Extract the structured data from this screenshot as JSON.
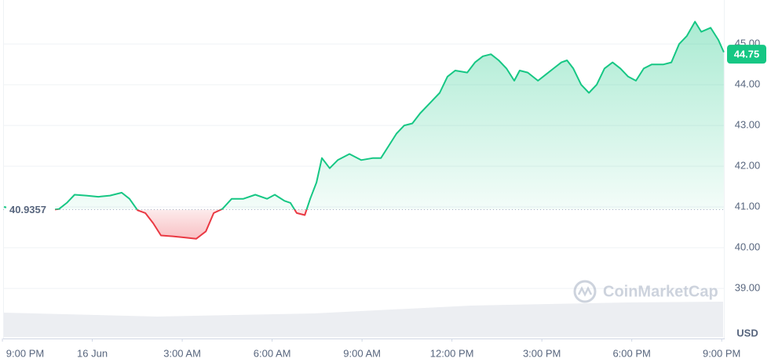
{
  "chart_data": {
    "type": "line",
    "x": [
      0.05,
      1.1,
      1.89,
      2.15,
      2.41,
      2.8,
      3.2,
      3.59,
      3.98,
      4.24,
      4.51,
      4.77,
      5.03,
      5.29,
      5.69,
      6.08,
      6.47,
      6.79,
      7.05,
      7.34,
      7.65,
      8.04,
      8.44,
      8.83,
      9.09,
      9.41,
      9.61,
      9.82,
      10.09,
      10.27,
      10.48,
      10.66,
      10.92,
      11.19,
      11.58,
      11.97,
      12.37,
      12.63,
      12.89,
      13.15,
      13.41,
      13.68,
      13.94,
      14.33,
      14.59,
      14.85,
      15.11,
      15.51,
      15.77,
      16.03,
      16.3,
      16.56,
      16.82,
      17.08,
      17.26,
      17.53,
      17.87,
      18.13,
      18.39,
      18.65,
      18.84,
      19.05,
      19.31,
      19.57,
      19.83,
      20.09,
      20.36,
      20.62,
      20.88,
      21.14,
      21.4,
      21.67,
      22.06,
      22.32,
      22.58,
      22.84,
      23.11,
      23.32,
      23.63,
      23.89,
      24.07
    ],
    "values": [
      41.0,
      40.88,
      40.95,
      41.1,
      41.3,
      41.28,
      41.25,
      41.28,
      41.35,
      41.2,
      40.92,
      40.85,
      40.6,
      40.3,
      40.28,
      40.25,
      40.22,
      40.4,
      40.85,
      40.95,
      41.2,
      41.2,
      41.3,
      41.2,
      41.3,
      41.15,
      41.1,
      40.85,
      40.8,
      41.2,
      41.6,
      42.2,
      41.95,
      42.15,
      42.3,
      42.15,
      42.2,
      42.2,
      42.5,
      42.8,
      43.0,
      43.05,
      43.3,
      43.6,
      43.8,
      44.2,
      44.35,
      44.3,
      44.55,
      44.7,
      44.75,
      44.6,
      44.4,
      44.1,
      44.35,
      44.3,
      44.1,
      44.25,
      44.4,
      44.55,
      44.6,
      44.4,
      44.0,
      43.8,
      44.0,
      44.4,
      44.55,
      44.4,
      44.2,
      44.1,
      44.4,
      44.5,
      44.5,
      44.55,
      45.0,
      45.2,
      45.55,
      45.3,
      45.4,
      45.1,
      44.8
    ],
    "reference": 40.9357,
    "current_price": 44.75,
    "up_color": "#16c784",
    "down_color": "#ea3943",
    "xlim": [
      -0.08,
      24.1
    ],
    "xticks": [
      {
        "value": 0,
        "label": "9:00 PM"
      },
      {
        "value": 3,
        "label": "16 Jun"
      },
      {
        "value": 6,
        "label": "3:00 AM"
      },
      {
        "value": 9,
        "label": "6:00 AM"
      },
      {
        "value": 12,
        "label": "9:00 AM"
      },
      {
        "value": 15,
        "label": "12:00 PM"
      },
      {
        "value": 18,
        "label": "3:00 PM"
      },
      {
        "value": 21,
        "label": "6:00 PM"
      },
      {
        "value": 24,
        "label": "9:00 PM"
      }
    ],
    "ylim": [
      37.81,
      46.08
    ],
    "yticks": [
      {
        "value": 39,
        "label": "39.00"
      },
      {
        "value": 40,
        "label": "40.00"
      },
      {
        "value": 41,
        "label": "41.00"
      },
      {
        "value": 42,
        "label": "42.00"
      },
      {
        "value": 43,
        "label": "43.00"
      },
      {
        "value": 44,
        "label": "44.00"
      },
      {
        "value": 45,
        "label": "45.00"
      }
    ],
    "y_axis_unit": "USD",
    "watermark": "CoinMarketCap",
    "grid": true
  }
}
